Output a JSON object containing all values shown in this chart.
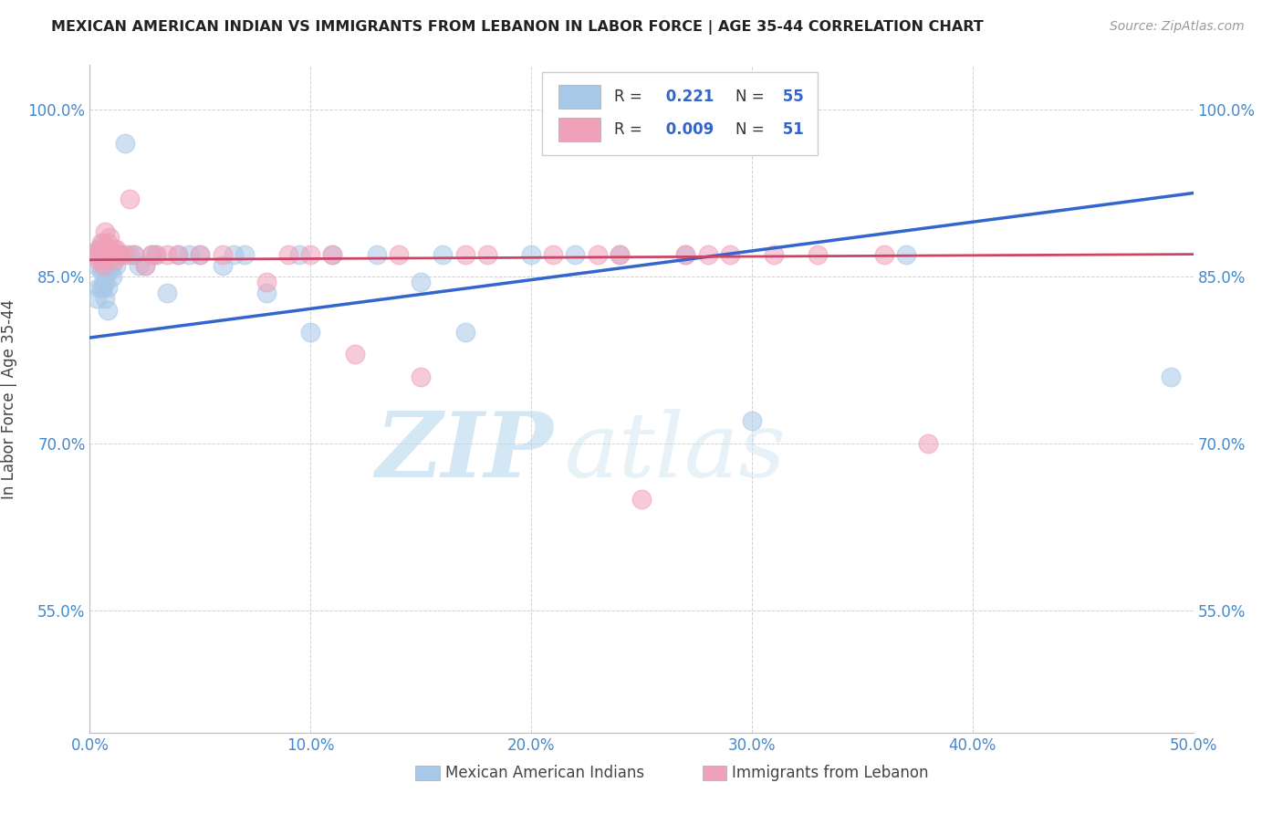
{
  "title": "MEXICAN AMERICAN INDIAN VS IMMIGRANTS FROM LEBANON IN LABOR FORCE | AGE 35-44 CORRELATION CHART",
  "source": "Source: ZipAtlas.com",
  "ylabel": "In Labor Force | Age 35-44",
  "xlim": [
    0.0,
    0.5
  ],
  "ylim": [
    0.44,
    1.04
  ],
  "xticks": [
    0.0,
    0.1,
    0.2,
    0.3,
    0.4,
    0.5
  ],
  "xtick_labels": [
    "0.0%",
    "10.0%",
    "20.0%",
    "30.0%",
    "40.0%",
    "50.0%"
  ],
  "yticks": [
    0.55,
    0.7,
    0.85,
    1.0
  ],
  "ytick_labels": [
    "55.0%",
    "70.0%",
    "85.0%",
    "100.0%"
  ],
  "blue_R": 0.221,
  "blue_N": 55,
  "pink_R": 0.009,
  "pink_N": 51,
  "blue_label": "Mexican American Indians",
  "pink_label": "Immigrants from Lebanon",
  "blue_color": "#a8c8e8",
  "pink_color": "#f0a0b8",
  "blue_line_color": "#3366cc",
  "pink_line_color": "#cc4466",
  "watermark_zip": "ZIP",
  "watermark_atlas": "atlas",
  "background_color": "#ffffff",
  "blue_line_y0": 0.795,
  "blue_line_y1": 0.925,
  "pink_line_y0": 0.865,
  "pink_line_y1": 0.87,
  "blue_x": [
    0.002,
    0.003,
    0.003,
    0.004,
    0.004,
    0.005,
    0.005,
    0.005,
    0.006,
    0.006,
    0.006,
    0.007,
    0.007,
    0.007,
    0.008,
    0.008,
    0.008,
    0.008,
    0.009,
    0.009,
    0.01,
    0.01,
    0.011,
    0.012,
    0.013,
    0.014,
    0.016,
    0.018,
    0.02,
    0.022,
    0.025,
    0.028,
    0.03,
    0.035,
    0.04,
    0.045,
    0.05,
    0.06,
    0.065,
    0.07,
    0.08,
    0.095,
    0.1,
    0.11,
    0.13,
    0.15,
    0.16,
    0.17,
    0.2,
    0.22,
    0.24,
    0.27,
    0.3,
    0.37,
    0.49
  ],
  "blue_y": [
    0.87,
    0.86,
    0.83,
    0.875,
    0.84,
    0.87,
    0.855,
    0.84,
    0.88,
    0.855,
    0.84,
    0.86,
    0.845,
    0.83,
    0.87,
    0.855,
    0.84,
    0.82,
    0.875,
    0.855,
    0.86,
    0.85,
    0.87,
    0.86,
    0.87,
    0.87,
    0.97,
    0.87,
    0.87,
    0.86,
    0.86,
    0.87,
    0.87,
    0.835,
    0.87,
    0.87,
    0.87,
    0.86,
    0.87,
    0.87,
    0.835,
    0.87,
    0.8,
    0.87,
    0.87,
    0.845,
    0.87,
    0.8,
    0.87,
    0.87,
    0.87,
    0.87,
    0.72,
    0.87,
    0.76
  ],
  "pink_x": [
    0.003,
    0.004,
    0.004,
    0.005,
    0.005,
    0.006,
    0.006,
    0.006,
    0.007,
    0.007,
    0.007,
    0.008,
    0.008,
    0.009,
    0.009,
    0.01,
    0.011,
    0.011,
    0.012,
    0.013,
    0.014,
    0.016,
    0.018,
    0.02,
    0.025,
    0.028,
    0.03,
    0.035,
    0.04,
    0.05,
    0.06,
    0.08,
    0.09,
    0.1,
    0.11,
    0.12,
    0.14,
    0.15,
    0.17,
    0.18,
    0.21,
    0.23,
    0.24,
    0.25,
    0.27,
    0.28,
    0.29,
    0.31,
    0.33,
    0.36,
    0.38
  ],
  "pink_y": [
    0.87,
    0.875,
    0.865,
    0.88,
    0.87,
    0.875,
    0.87,
    0.86,
    0.89,
    0.875,
    0.865,
    0.88,
    0.87,
    0.885,
    0.875,
    0.87,
    0.875,
    0.865,
    0.875,
    0.87,
    0.87,
    0.87,
    0.92,
    0.87,
    0.86,
    0.87,
    0.87,
    0.87,
    0.87,
    0.87,
    0.87,
    0.845,
    0.87,
    0.87,
    0.87,
    0.78,
    0.87,
    0.76,
    0.87,
    0.87,
    0.87,
    0.87,
    0.87,
    0.65,
    0.87,
    0.87,
    0.87,
    0.87,
    0.87,
    0.87,
    0.7
  ]
}
